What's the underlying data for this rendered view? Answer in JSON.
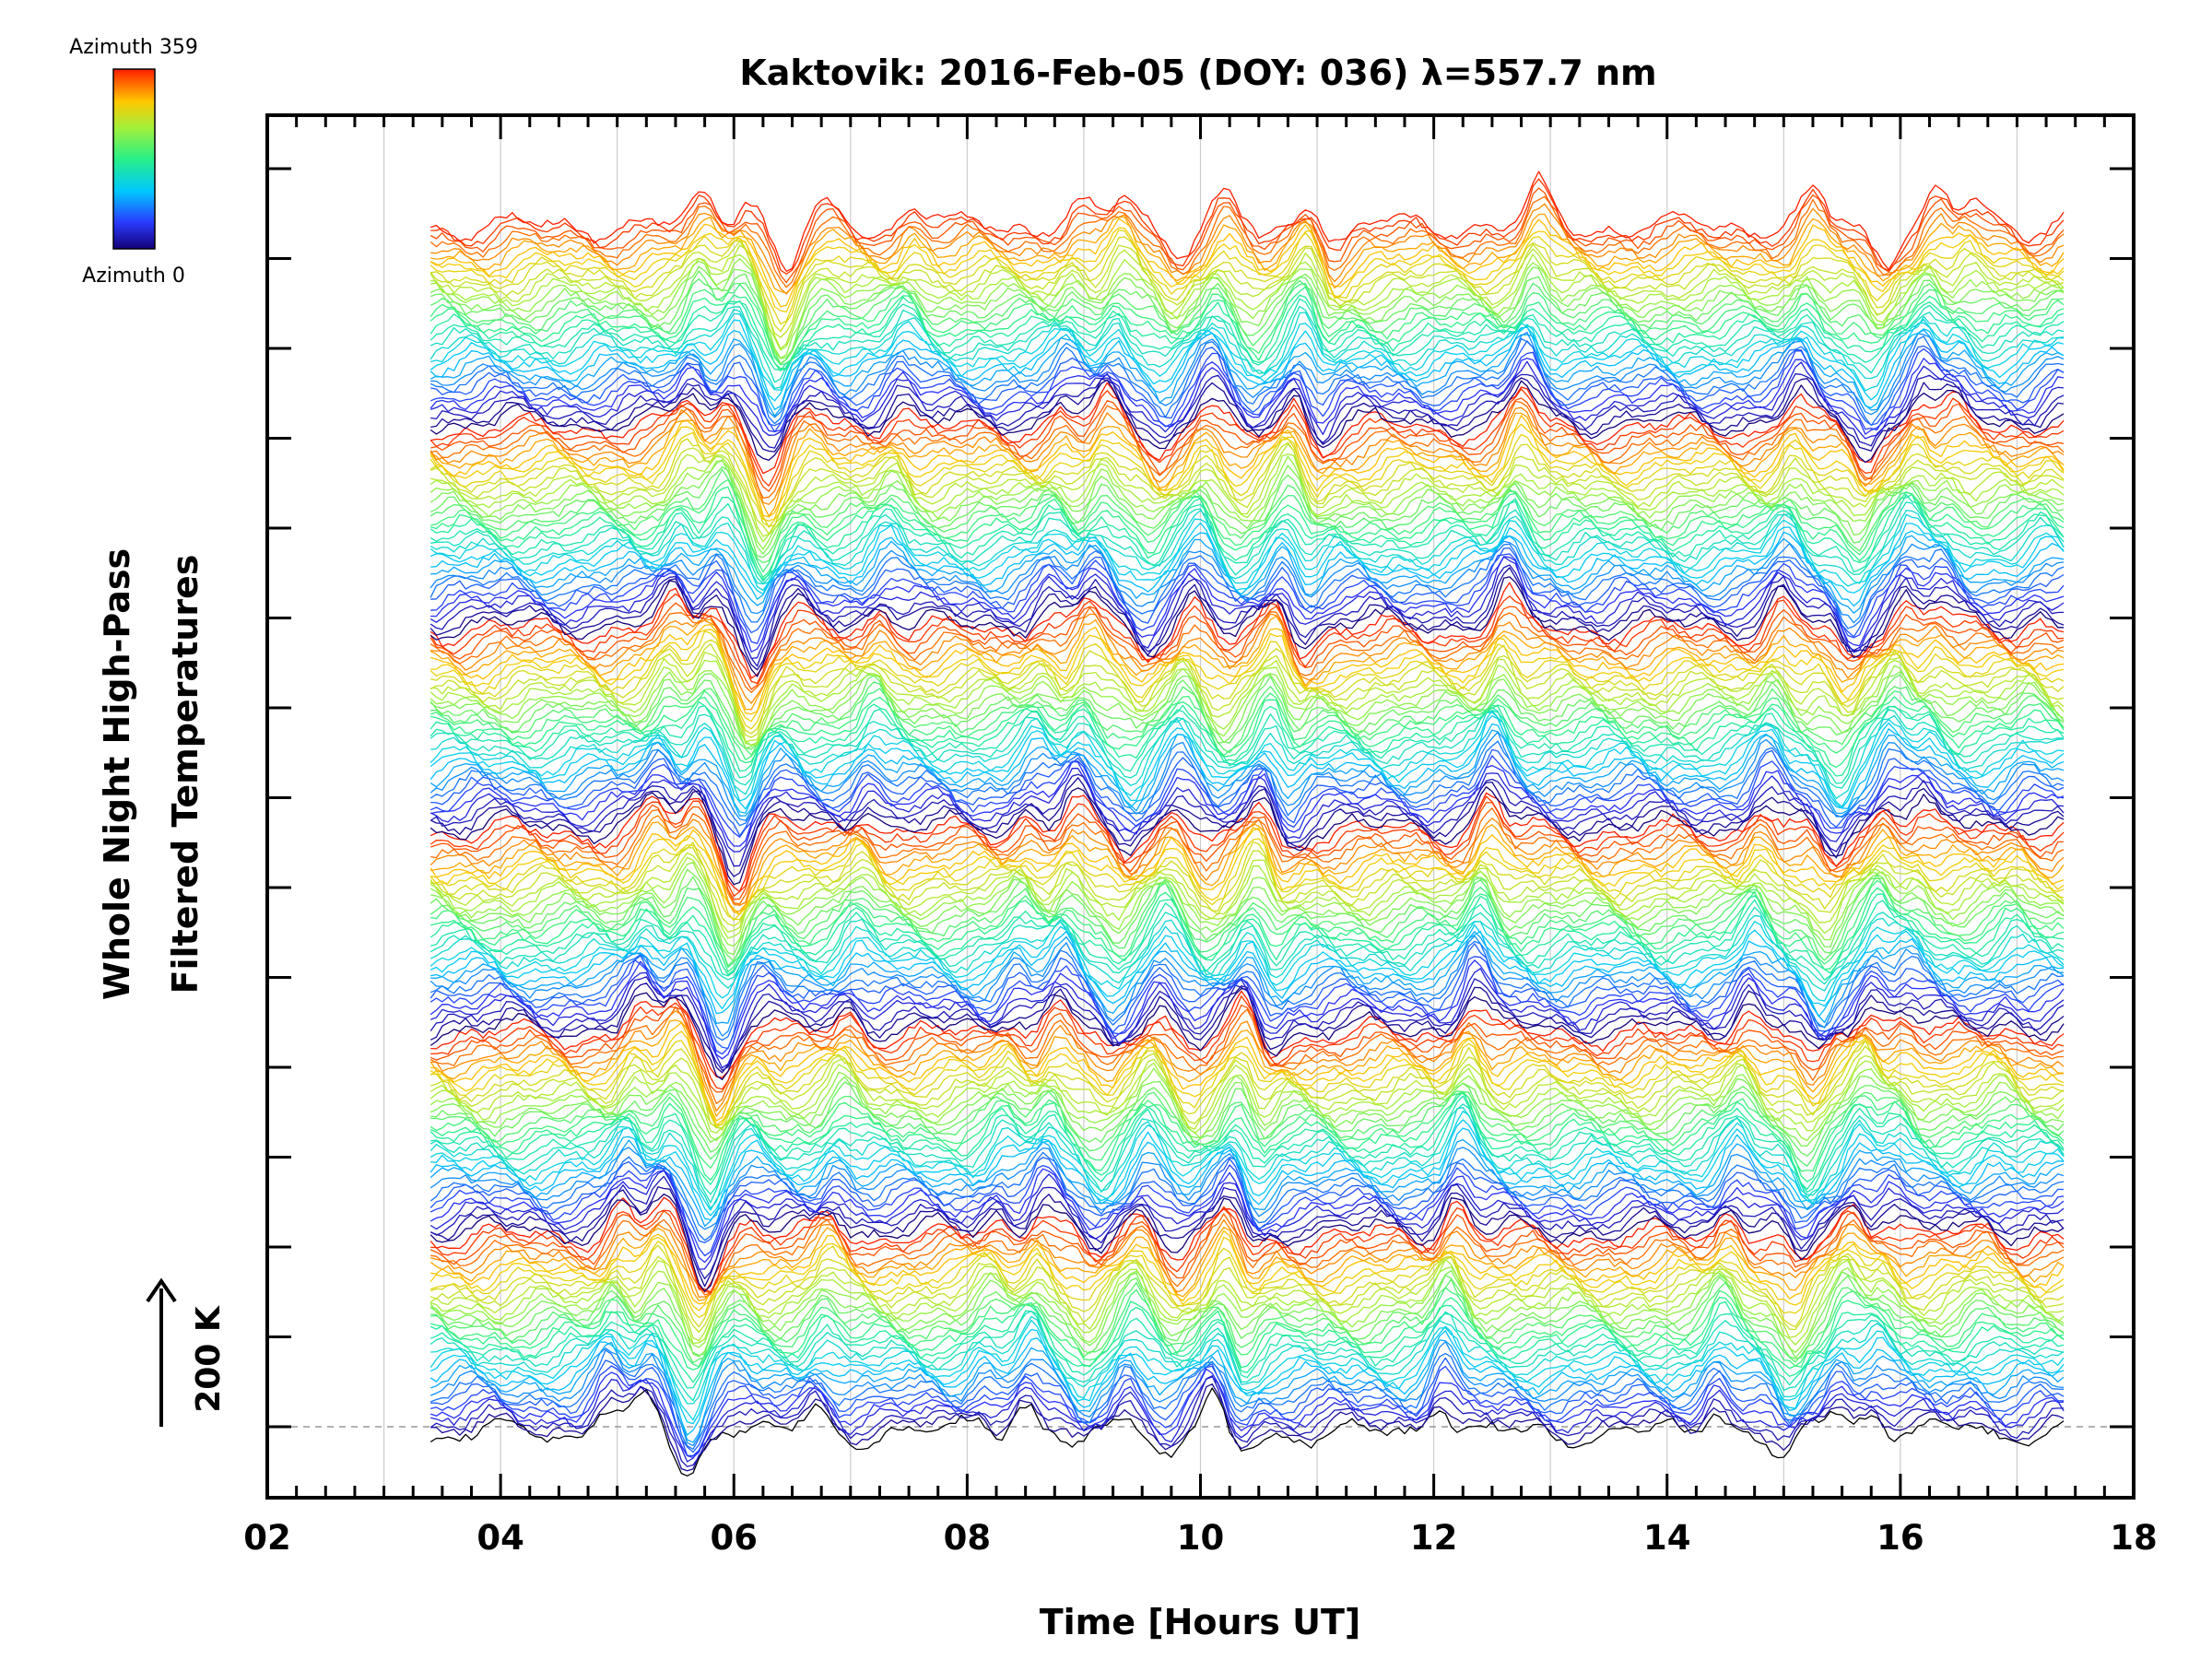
{
  "chart_data": {
    "type": "line",
    "title": "Kaktovik: 2016-Feb-05 (DOY: 036) λ=557.7 nm",
    "xlabel": "Time [Hours UT]",
    "ylabel_line1": "Whole Night High-Pass",
    "ylabel_line2": "Filtered Temperatures",
    "xlim": [
      2,
      18
    ],
    "x_ticks": [
      "02",
      "04",
      "06",
      "08",
      "10",
      "12",
      "14",
      "16",
      "18"
    ],
    "x_data_range": [
      3.4,
      17.4
    ],
    "grid": true,
    "legend": {
      "placement": "top-left",
      "top_label": "Azimuth 359",
      "bottom_label": "Azimuth 0",
      "azimuth_range": [
        0,
        359
      ]
    },
    "scale_bar": {
      "label": "200 K",
      "value_k": 200
    },
    "series_description_count": 216,
    "cycle_length": 36,
    "stacked": true,
    "features": [
      {
        "time": 4.9,
        "strength": 1.0
      },
      {
        "time": 5.25,
        "strength": 1.1
      },
      {
        "time": 5.6,
        "strength": -1.6
      },
      {
        "time": 5.95,
        "strength": 0.5
      },
      {
        "time": 6.7,
        "strength": 0.8
      },
      {
        "time": 8.1,
        "strength": 0.7
      },
      {
        "time": 8.5,
        "strength": 1.0
      },
      {
        "time": 8.95,
        "strength": -0.8
      },
      {
        "time": 9.35,
        "strength": 1.0
      },
      {
        "time": 9.7,
        "strength": -0.6
      },
      {
        "time": 10.1,
        "strength": 1.1
      },
      {
        "time": 10.3,
        "strength": -0.7
      },
      {
        "time": 12.05,
        "strength": 1.3
      },
      {
        "time": 14.4,
        "strength": 1.0
      },
      {
        "time": 15.0,
        "strength": -1.1
      },
      {
        "time": 15.45,
        "strength": 1.1
      },
      {
        "time": 15.75,
        "strength": 0.7
      },
      {
        "time": 16.6,
        "strength": 0.4
      }
    ],
    "colors": {
      "axis": "#000000",
      "grid": "#cccccc",
      "baseline": "#999999"
    }
  }
}
